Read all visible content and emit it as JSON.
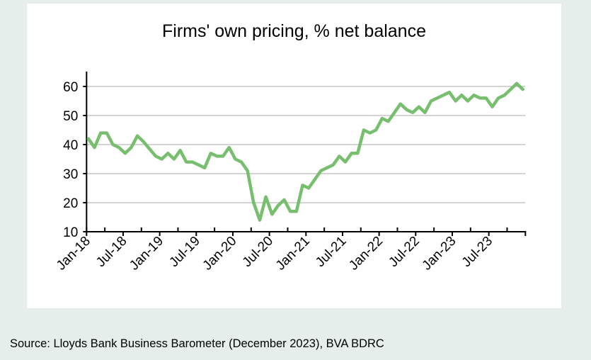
{
  "chart_data": {
    "type": "line",
    "title": "Firms' own pricing, % net balance",
    "xlabel": "",
    "ylabel": "",
    "ylim": [
      10,
      60
    ],
    "yticks": [
      10,
      20,
      30,
      40,
      50,
      60
    ],
    "grid": true,
    "x_tick_labels": [
      "Jan-18",
      "Jul-18",
      "Jan-19",
      "Jul-19",
      "Jan-20",
      "Jul-20",
      "Jan-21",
      "Jul-21",
      "Jan-22",
      "Jul-22",
      "Jan-23",
      "Jul-23"
    ],
    "x_start": "Jan-18",
    "x_end": "Dec-23",
    "line_color": "#77bf6e",
    "series": [
      {
        "values": [
          42,
          39,
          44,
          44,
          40,
          39,
          37,
          39,
          43,
          41,
          38.5,
          36,
          35,
          37,
          35,
          38,
          34,
          34,
          33,
          32,
          37,
          36,
          36,
          39,
          35,
          34,
          31,
          20,
          14,
          22,
          16,
          19,
          21,
          17,
          17,
          26,
          25,
          28,
          31,
          32,
          33,
          36,
          34,
          37,
          37,
          45,
          44,
          45,
          49,
          48,
          51,
          54,
          52,
          51,
          53,
          51,
          55,
          56,
          57,
          58,
          55,
          57,
          55,
          57,
          56,
          56,
          53,
          56,
          57,
          59,
          61,
          59
        ]
      }
    ]
  },
  "source": "Source: Lloyds Bank Business Barometer (December 2023), BVA BDRC"
}
